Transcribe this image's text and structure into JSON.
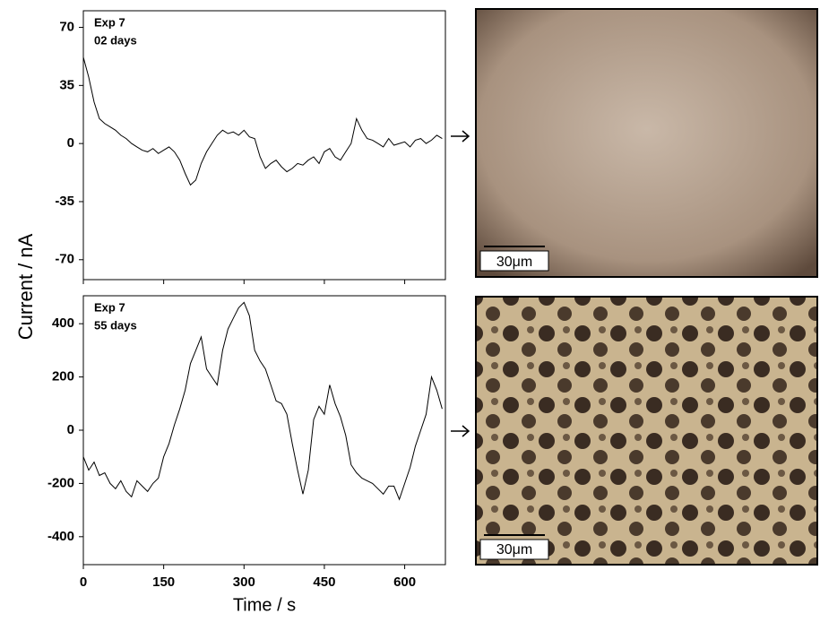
{
  "chart_data": [
    {
      "type": "line",
      "ylabel": "Current / nA",
      "annotations": [
        "Exp 7",
        "02 days"
      ],
      "color": "#000000",
      "x": [
        0,
        10,
        20,
        30,
        40,
        50,
        60,
        70,
        80,
        90,
        100,
        110,
        120,
        130,
        140,
        150,
        160,
        170,
        180,
        190,
        200,
        210,
        220,
        230,
        240,
        250,
        260,
        270,
        280,
        290,
        300,
        310,
        320,
        330,
        340,
        350,
        360,
        370,
        380,
        390,
        400,
        410,
        420,
        430,
        440,
        450,
        460,
        470,
        480,
        490,
        500,
        510,
        520,
        530,
        540,
        550,
        560,
        570,
        580,
        590,
        600,
        610,
        620,
        630,
        640,
        650,
        660,
        670
      ],
      "values": [
        52,
        40,
        25,
        15,
        12,
        10,
        8,
        5,
        3,
        0,
        -2,
        -4,
        -5,
        -3,
        -6,
        -4,
        -2,
        -5,
        -10,
        -18,
        -25,
        -22,
        -12,
        -5,
        0,
        5,
        8,
        6,
        7,
        5,
        8,
        4,
        3,
        -8,
        -15,
        -12,
        -10,
        -14,
        -17,
        -15,
        -12,
        -13,
        -10,
        -8,
        -12,
        -5,
        -3,
        -8,
        -10,
        -5,
        0,
        15,
        8,
        3,
        2,
        0,
        -2,
        3,
        -1,
        0,
        1,
        -2,
        2,
        3,
        0,
        2,
        5,
        3
      ],
      "xlim": [
        0,
        676
      ],
      "xticks": [
        0,
        150,
        300,
        450,
        600
      ],
      "ylim": [
        -82,
        80
      ],
      "yticks": [
        70,
        35,
        0,
        -35,
        -70
      ]
    },
    {
      "type": "line",
      "xlabel": "Time / s",
      "annotations": [
        "Exp 7",
        "55 days"
      ],
      "color": "#000000",
      "x": [
        0,
        10,
        20,
        30,
        40,
        50,
        60,
        70,
        80,
        90,
        100,
        110,
        120,
        130,
        140,
        150,
        160,
        170,
        180,
        190,
        200,
        210,
        220,
        230,
        240,
        250,
        260,
        270,
        280,
        290,
        300,
        310,
        320,
        330,
        340,
        350,
        360,
        370,
        380,
        390,
        400,
        410,
        420,
        430,
        440,
        450,
        460,
        470,
        480,
        490,
        500,
        510,
        520,
        530,
        540,
        550,
        560,
        570,
        580,
        590,
        600,
        610,
        620,
        630,
        640,
        650,
        660,
        670
      ],
      "values": [
        -100,
        -150,
        -120,
        -170,
        -160,
        -200,
        -220,
        -190,
        -230,
        -250,
        -190,
        -210,
        -230,
        -200,
        -180,
        -100,
        -50,
        20,
        80,
        150,
        250,
        300,
        350,
        230,
        200,
        170,
        300,
        380,
        420,
        460,
        480,
        430,
        300,
        260,
        230,
        170,
        110,
        100,
        60,
        -50,
        -150,
        -240,
        -150,
        40,
        90,
        60,
        170,
        100,
        50,
        -20,
        -130,
        -160,
        -180,
        -190,
        -200,
        -220,
        -240,
        -210,
        -210,
        -260,
        -200,
        -140,
        -60,
        0,
        60,
        200,
        150,
        80
      ],
      "xlim": [
        0,
        676
      ],
      "xticks": [
        0,
        150,
        300,
        450,
        600
      ],
      "ylim": [
        -505,
        505
      ],
      "yticks": [
        400,
        200,
        0,
        -200,
        -400
      ]
    }
  ],
  "images": [
    {
      "scale_bar": "30μm"
    },
    {
      "scale_bar": "30μm"
    }
  ]
}
